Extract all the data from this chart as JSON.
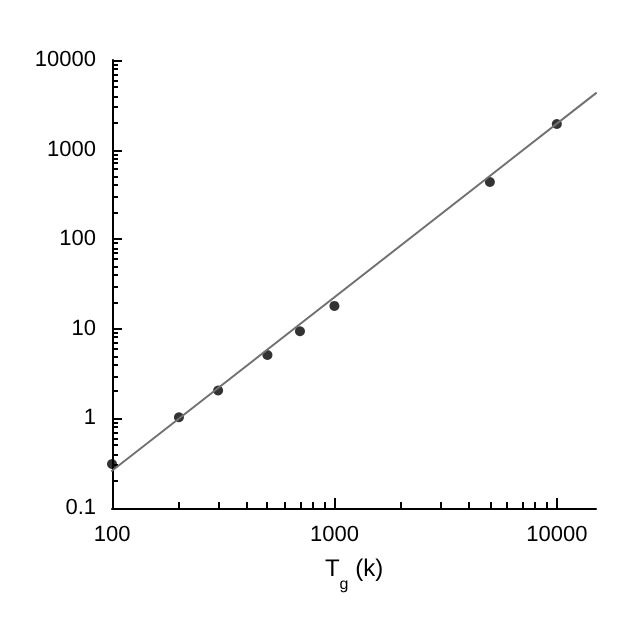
{
  "chart_data": {
    "type": "scatter",
    "xlabel": "T$_{g}$ (k)",
    "log": "xy",
    "xlim": [
      100,
      15000
    ],
    "xticks": [
      100,
      1000,
      10000
    ],
    "ylim": [
      0.1,
      10000
    ],
    "yticks": [
      0.1,
      1,
      10,
      100,
      1000,
      10000
    ],
    "grid": false,
    "marker": "circle",
    "x": [
      100,
      200,
      300,
      500,
      700,
      1000,
      5000,
      10000
    ],
    "series": [
      {
        "color": "#000000",
        "values": [
          0.31,
          1.03,
          2.05,
          5.1,
          9.4,
          18,
          435,
          1930
        ]
      },
      {
        "type": "line",
        "color": "#707070",
        "line_style": "solid",
        "marker": "none",
        "x": [
          100,
          15000
        ],
        "values": [
          0.26,
          4270
        ]
      }
    ]
  }
}
